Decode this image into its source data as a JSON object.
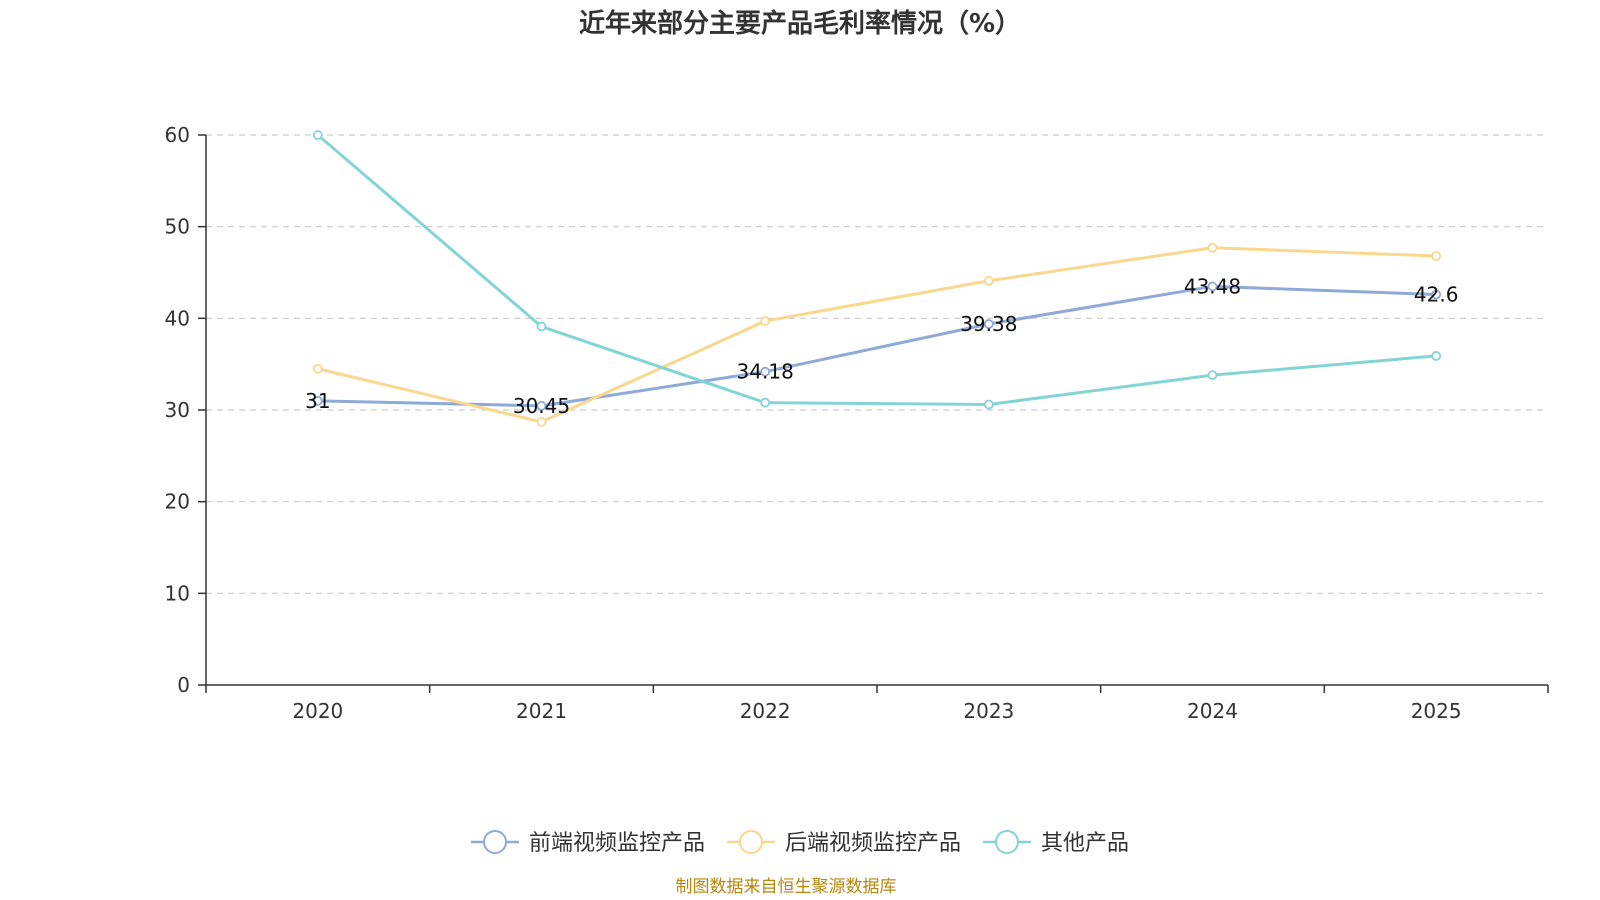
{
  "chart_data": {
    "type": "line",
    "title": "近年来部分主要产品毛利率情况（%）",
    "xlabel": "",
    "ylabel": "",
    "categories": [
      "2020",
      "2021",
      "2022",
      "2023",
      "2024",
      "2025"
    ],
    "ylim": [
      0,
      60
    ],
    "yticks": [
      0,
      10,
      20,
      30,
      40,
      50,
      60
    ],
    "grid": true,
    "legend_position": "bottom",
    "series": [
      {
        "name": "前端视频监控产品",
        "color": "#8eaad6",
        "values": [
          31,
          30.45,
          34.18,
          39.38,
          43.48,
          42.6
        ],
        "data_labels": [
          "31",
          "30.45",
          "34.18",
          "39.38",
          "43.48",
          "42.6"
        ]
      },
      {
        "name": "后端视频监控产品",
        "color": "#fad78f",
        "values": [
          34.5,
          28.7,
          39.7,
          44.1,
          47.7,
          46.8
        ],
        "data_labels": []
      },
      {
        "name": "其他产品",
        "color": "#82d4d6",
        "values": [
          60,
          39.1,
          30.8,
          30.6,
          33.8,
          35.9
        ],
        "data_labels": []
      }
    ]
  },
  "source": "制图数据来自恒生聚源数据库"
}
